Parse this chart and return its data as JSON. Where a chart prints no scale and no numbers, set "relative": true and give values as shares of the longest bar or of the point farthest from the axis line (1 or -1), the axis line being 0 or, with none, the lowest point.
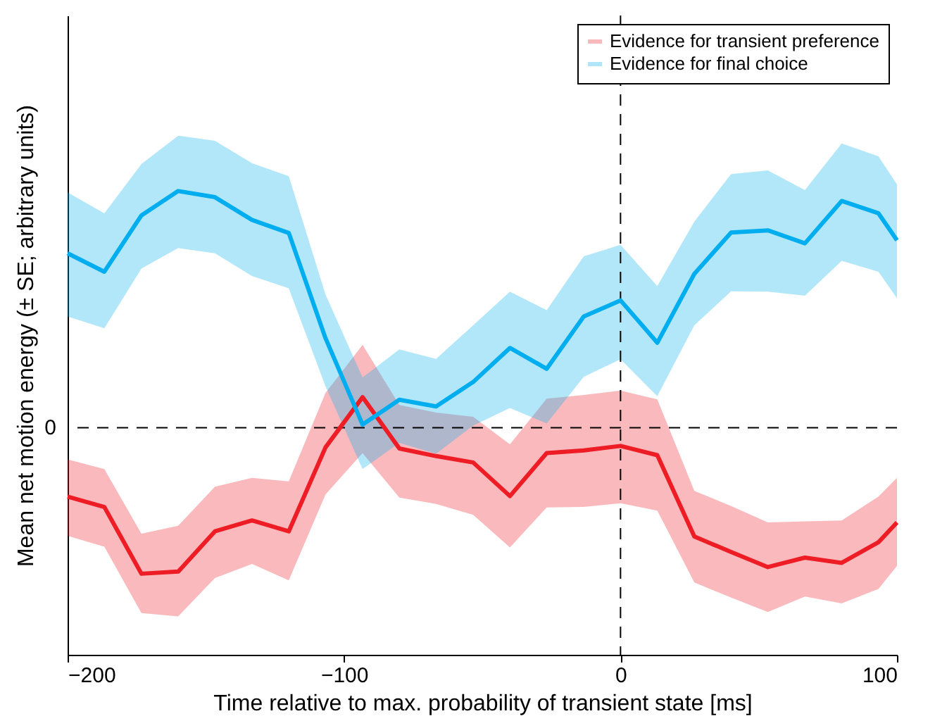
{
  "chart_data": {
    "type": "line",
    "relative": true,
    "xlabel": "Time relative to max. probability of transient state [ms]",
    "ylabel": "Mean net motion energy (± SE; arbitrary units)",
    "x": [
      -200,
      -186.7,
      -173.3,
      -160,
      -146.7,
      -133.3,
      -120,
      -106.7,
      -93.3,
      -80,
      -66.7,
      -53.3,
      -40,
      -26.7,
      -13.3,
      0,
      13.3,
      26.7,
      40,
      53.3,
      66.7,
      80,
      93.3,
      100
    ],
    "xlim": [
      -200,
      100
    ],
    "xticks": [
      -200,
      -100,
      0,
      100
    ],
    "series": [
      {
        "name": "Evidence for transient preference",
        "color": "#ee1c25",
        "values": [
          -0.291,
          -0.335,
          -0.617,
          -0.608,
          -0.438,
          -0.392,
          -0.438,
          -0.083,
          0.129,
          -0.088,
          -0.12,
          -0.147,
          -0.289,
          -0.107,
          -0.096,
          -0.077,
          -0.116,
          -0.46,
          -0.525,
          -0.589,
          -0.549,
          -0.571,
          -0.484,
          -0.4
        ],
        "upper": [
          -0.134,
          -0.175,
          -0.448,
          -0.414,
          -0.249,
          -0.212,
          -0.227,
          0.147,
          0.35,
          0.096,
          0.064,
          0.046,
          -0.07,
          0.123,
          0.138,
          0.157,
          0.12,
          -0.267,
          -0.331,
          -0.4,
          -0.396,
          -0.392,
          -0.291,
          -0.212
        ],
        "lower": [
          -0.457,
          -0.503,
          -0.783,
          -0.797,
          -0.635,
          -0.576,
          -0.645,
          -0.282,
          -0.107,
          -0.295,
          -0.322,
          -0.368,
          -0.506,
          -0.337,
          -0.335,
          -0.319,
          -0.35,
          -0.654,
          -0.718,
          -0.779,
          -0.713,
          -0.742,
          -0.681,
          -0.584
        ]
      },
      {
        "name": "Evidence for final choice",
        "color": "#00aeef",
        "values": [
          0.737,
          0.659,
          0.897,
          1.0,
          0.974,
          0.878,
          0.823,
          0.378,
          0.013,
          0.118,
          0.09,
          0.193,
          0.337,
          0.249,
          0.47,
          0.538,
          0.359,
          0.65,
          0.825,
          0.834,
          0.779,
          0.958,
          0.906,
          0.792
        ],
        "upper": [
          0.994,
          0.906,
          1.114,
          1.234,
          1.212,
          1.118,
          1.063,
          0.562,
          0.212,
          0.331,
          0.291,
          0.433,
          0.575,
          0.497,
          0.724,
          0.773,
          0.599,
          0.871,
          1.072,
          1.087,
          1.004,
          1.201,
          1.147,
          1.028
        ],
        "lower": [
          0.47,
          0.42,
          0.672,
          0.759,
          0.737,
          0.641,
          0.589,
          0.175,
          -0.175,
          -0.064,
          -0.11,
          0.009,
          0.083,
          0.018,
          0.215,
          0.289,
          0.133,
          0.433,
          0.576,
          0.575,
          0.558,
          0.705,
          0.659,
          0.547
        ]
      }
    ],
    "ref_lines": [
      {
        "axis": "y",
        "value": 0,
        "label": "0",
        "line_style": "dashed"
      },
      {
        "axis": "x",
        "value": 0,
        "line_style": "dashed"
      }
    ],
    "legend": "top right",
    "grid": false,
    "line_style": "solid",
    "marker": "none"
  }
}
